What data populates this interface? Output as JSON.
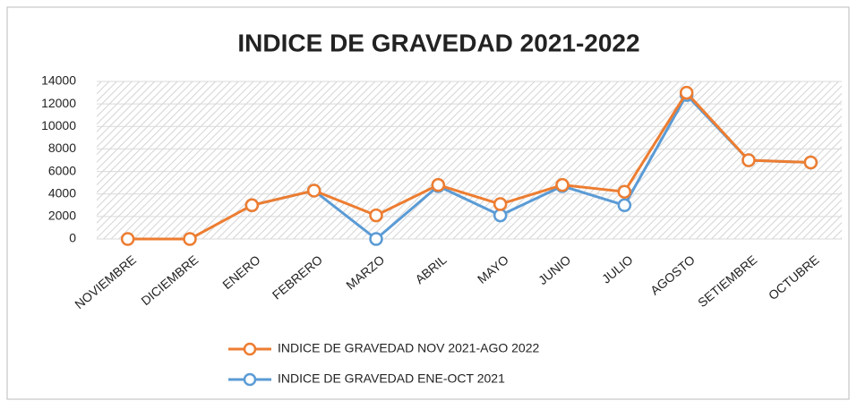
{
  "chart_data": {
    "type": "line",
    "title": "INDICE DE GRAVEDAD 2021-2022",
    "categories": [
      "NOVIEMBRE",
      "DICIEMBRE",
      "ENERO",
      "FEBRERO",
      "MARZO",
      "ABRIL",
      "MAYO",
      "JUNIO",
      "JULIO",
      "AGOSTO",
      "SETIEMBRE",
      "OCTUBRE"
    ],
    "series": [
      {
        "name": "INDICE DE GRAVEDAD ENE-OCT 2021",
        "color": "#5b9bd5",
        "values": [
          null,
          null,
          3000,
          4300,
          0,
          4700,
          2100,
          4700,
          3000,
          12800,
          7000,
          6800
        ]
      },
      {
        "name": "INDICE DE GRAVEDAD NOV 2021-AGO 2022",
        "color": "#ed7d31",
        "values": [
          0,
          0,
          3000,
          4300,
          2100,
          4800,
          3100,
          4800,
          4200,
          13000,
          7000,
          6800
        ]
      }
    ],
    "ylim": [
      0,
      14000
    ],
    "yticks": [
      0,
      2000,
      4000,
      6000,
      8000,
      10000,
      12000,
      14000
    ],
    "grid": true
  }
}
